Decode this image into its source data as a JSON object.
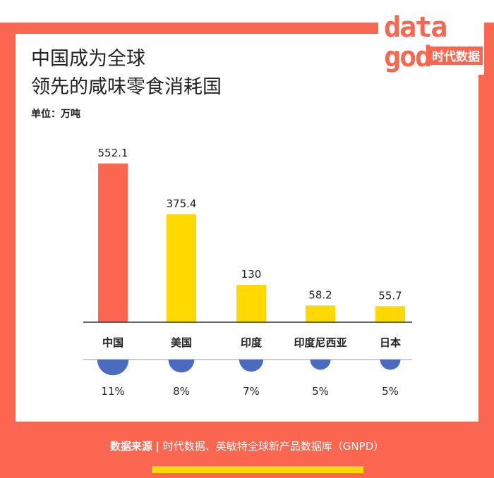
{
  "title_lines": [
    "中国成为全球",
    "领先的咸味零食消耗国"
  ],
  "unit_label": "单位：万吨",
  "logo": {
    "word_top": "data",
    "word_bottom": "god",
    "cn": "时代数据"
  },
  "source": {
    "label": "数据来源",
    "separator": "|",
    "text": "时代数据、英敏特全球新产品数据库（GNPD）"
  },
  "colors": {
    "frame": "#fa6650",
    "highlight_bar": "#fa6650",
    "bar": "#ffd900",
    "circle": "#4a6bbf",
    "axis": "#333333"
  },
  "chart_data": {
    "type": "bar",
    "unit": "万吨",
    "categories": [
      "中国",
      "美国",
      "印度",
      "印度尼西亚",
      "日本"
    ],
    "values": [
      552.1,
      375.4,
      130,
      58.2,
      55.7
    ],
    "value_labels": [
      "552.1",
      "375.4",
      "130",
      "58.2",
      "55.7"
    ],
    "share_labels": [
      "11%",
      "8%",
      "7%",
      "5%",
      "5%"
    ],
    "shares": [
      11,
      8,
      7,
      5,
      5
    ],
    "highlight_index": 0,
    "ylim": [
      0,
      552.1
    ]
  }
}
